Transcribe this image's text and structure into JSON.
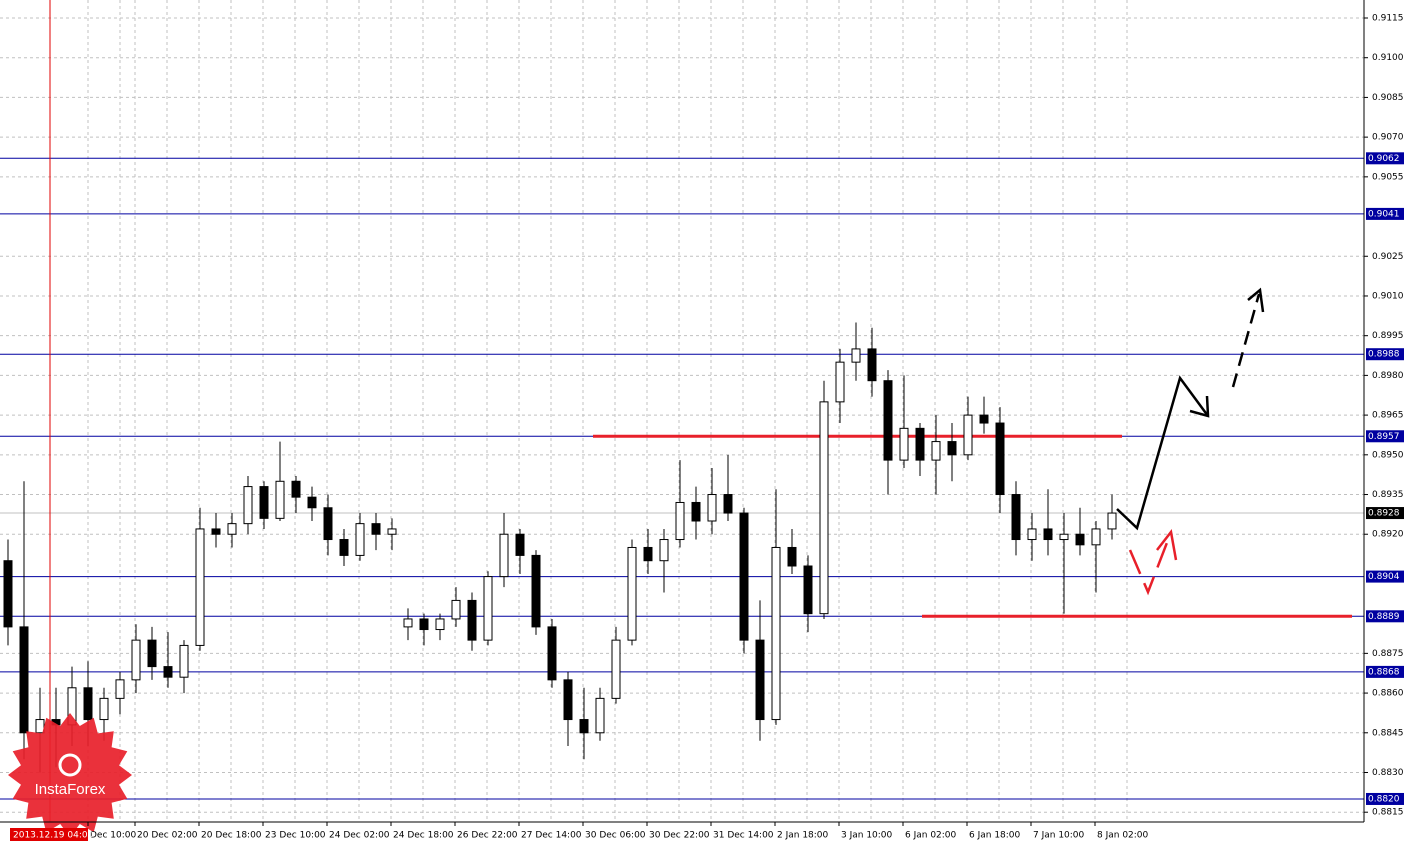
{
  "chart_data": {
    "type": "candlestick",
    "ylim": [
      0.88113,
      0.91218
    ],
    "yticks": [
      0.9115,
      {
        "value": 0.91,
        "label": "0.9100"
      },
      0.9085,
      {
        "value": 0.907,
        "label": "0.9070"
      },
      0.9055,
      0.9025,
      {
        "value": 0.901,
        "label": "0.9010"
      },
      0.8995,
      {
        "value": 0.898,
        "label": "0.8980"
      },
      0.8965,
      {
        "value": 0.895,
        "label": "0.8950"
      },
      0.8935,
      {
        "value": 0.892,
        "label": "0.8920"
      },
      0.8875,
      {
        "value": 0.886,
        "label": "0.8860"
      },
      0.8845,
      {
        "value": 0.883,
        "label": "0.8830"
      },
      0.8815
    ],
    "grid": true,
    "cursor_time": "2013.12.19 04:00",
    "xticks": [
      "Dec 10:00",
      "20 Dec 02:00",
      "20 Dec 18:00",
      "23 Dec 10:00",
      "24 Dec 02:00",
      "24 Dec 18:00",
      "26 Dec 22:00",
      "27 Dec 14:00",
      "30 Dec 06:00",
      "30 Dec 22:00",
      "31 Dec 14:00",
      "2 Jan 18:00",
      "3 Jan 10:00",
      "6 Jan 02:00",
      "6 Jan 18:00",
      "7 Jan 10:00",
      "8 Jan 02:00"
    ],
    "levels": [
      0.9062,
      0.9041,
      0.8988,
      0.8957,
      0.8904,
      0.8889,
      0.8868,
      {
        "value": 0.882,
        "label": "0.8820"
      }
    ],
    "level_color": "#0000a0",
    "current_price": 0.8928,
    "trend_lines": [
      0.8957,
      0.8889
    ],
    "trend_color": "#e8202a",
    "watermark": "InstaForex",
    "open": [
      0.891,
      0.8885,
      0.8845,
      0.885,
      0.8848,
      0.8862,
      0.885,
      0.8858,
      0.8865,
      0.888,
      0.887,
      0.8866,
      0.8878,
      0.8922,
      0.892,
      0.8924,
      0.8938,
      0.8926,
      0.894,
      0.8934,
      0.893,
      0.8918,
      0.8912,
      0.8924,
      0.892,
      0.8885,
      0.8888,
      0.8884,
      0.8888,
      0.8895,
      0.888,
      0.8904,
      0.892,
      0.8912,
      0.8885,
      0.8865,
      0.885,
      0.8845,
      0.8858,
      0.888,
      0.8915,
      0.891,
      0.8918,
      0.8932,
      0.8925,
      0.8935,
      0.8928,
      0.888,
      0.885,
      0.8915,
      0.8908,
      0.889,
      0.897,
      0.8985,
      0.899,
      0.8978,
      0.8948,
      0.896,
      0.8948,
      0.8955,
      0.895,
      0.8965,
      0.8962,
      0.8935,
      0.8918,
      0.8922,
      0.8918,
      0.892,
      0.8916,
      0.8922
    ],
    "high": [
      0.8918,
      0.894,
      0.8862,
      0.8862,
      0.887,
      0.8872,
      0.8862,
      0.8868,
      0.8886,
      0.8885,
      0.8883,
      0.888,
      0.893,
      0.8928,
      0.8928,
      0.8942,
      0.894,
      0.8955,
      0.8942,
      0.8938,
      0.8935,
      0.8922,
      0.8928,
      0.8928,
      0.8926,
      0.8892,
      0.889,
      0.889,
      0.89,
      0.8898,
      0.8906,
      0.8928,
      0.8922,
      0.8914,
      0.8888,
      0.8868,
      0.8862,
      0.8862,
      0.8885,
      0.8918,
      0.8922,
      0.8922,
      0.8948,
      0.8938,
      0.8945,
      0.895,
      0.893,
      0.8895,
      0.8937,
      0.8922,
      0.8912,
      0.8978,
      0.899,
      0.9,
      0.8998,
      0.8982,
      0.898,
      0.8962,
      0.8965,
      0.8962,
      0.8972,
      0.8972,
      0.8968,
      0.894,
      0.8928,
      0.8937,
      0.8928,
      0.893,
      0.8925,
      0.8935
    ],
    "low": [
      0.8878,
      0.8835,
      0.883,
      0.8832,
      0.884,
      0.884,
      0.8842,
      0.8852,
      0.886,
      0.8865,
      0.8862,
      0.886,
      0.8876,
      0.8915,
      0.8915,
      0.892,
      0.8922,
      0.8925,
      0.8928,
      0.8925,
      0.8912,
      0.8908,
      0.891,
      0.8914,
      0.8914,
      0.888,
      0.8878,
      0.888,
      0.8885,
      0.8876,
      0.8878,
      0.89,
      0.8905,
      0.8882,
      0.8862,
      0.884,
      0.8835,
      0.8842,
      0.8856,
      0.8878,
      0.8905,
      0.8898,
      0.8915,
      0.8918,
      0.892,
      0.8925,
      0.8875,
      0.8842,
      0.8848,
      0.8905,
      0.8883,
      0.8888,
      0.8962,
      0.8978,
      0.8972,
      0.8935,
      0.8945,
      0.8942,
      0.8935,
      0.894,
      0.8948,
      0.8958,
      0.8928,
      0.8912,
      0.891,
      0.8912,
      0.889,
      0.8912,
      0.8898,
      0.8918
    ],
    "close": [
      0.8885,
      0.8845,
      0.885,
      0.8848,
      0.8862,
      0.885,
      0.8858,
      0.8865,
      0.888,
      0.887,
      0.8866,
      0.8878,
      0.8922,
      0.892,
      0.8924,
      0.8938,
      0.8926,
      0.894,
      0.8934,
      0.893,
      0.8918,
      0.8912,
      0.8924,
      0.892,
      0.8922,
      0.8888,
      0.8884,
      0.8888,
      0.8895,
      0.888,
      0.8904,
      0.892,
      0.8912,
      0.8885,
      0.8865,
      0.885,
      0.8845,
      0.8858,
      0.888,
      0.8915,
      0.891,
      0.8918,
      0.8932,
      0.8925,
      0.8935,
      0.8928,
      0.888,
      0.885,
      0.8915,
      0.8908,
      0.889,
      0.897,
      0.8985,
      0.899,
      0.8978,
      0.8948,
      0.896,
      0.8948,
      0.8955,
      0.895,
      0.8965,
      0.8962,
      0.8935,
      0.8918,
      0.8922,
      0.8918,
      0.892,
      0.8916,
      0.8922,
      0.8928
    ]
  }
}
